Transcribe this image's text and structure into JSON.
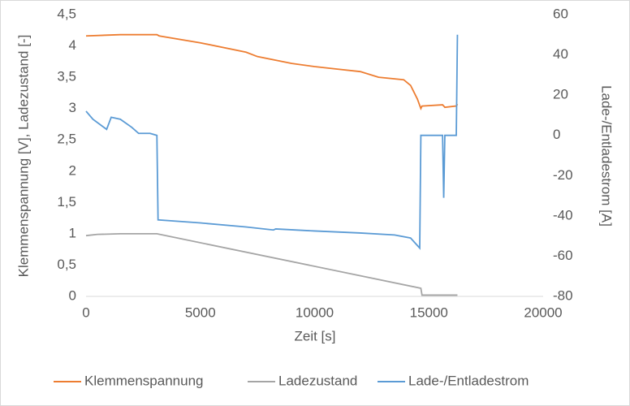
{
  "chart_data": {
    "type": "line",
    "x_label": "Zeit [s]",
    "y_label": "Klemmenspannung [V], Ladezustand [-]",
    "y2_label": "Lade-/Entladestrom [A]",
    "xlim": [
      0,
      20000
    ],
    "xticks": [
      0,
      5000,
      10000,
      15000,
      20000
    ],
    "ylim": [
      0,
      4.5
    ],
    "yticks": [
      0,
      {
        "value": 0.5,
        "label": "0,5"
      },
      1,
      {
        "value": 1.5,
        "label": "1,5"
      },
      2,
      {
        "value": 2.5,
        "label": "2,5"
      },
      3,
      {
        "value": 3.5,
        "label": "3,5"
      },
      4,
      {
        "value": 4.5,
        "label": "4,5"
      }
    ],
    "y2lim": [
      -80,
      60
    ],
    "y2ticks": [
      -80,
      -60,
      -40,
      -20,
      0,
      20,
      40,
      60
    ],
    "grid": false,
    "legend": "bottom",
    "series": [
      {
        "name": "Klemmenspannung",
        "color": "#ed7d31",
        "x": [
          0,
          1500,
          3100,
          3200,
          5000,
          7000,
          7500,
          9000,
          10000,
          11000,
          12000,
          12800,
          13900,
          14200,
          14500,
          14650,
          14700,
          15600,
          15700,
          16200,
          16250
        ],
        "values": [
          4.16,
          4.18,
          4.18,
          4.16,
          4.05,
          3.9,
          3.83,
          3.72,
          3.67,
          3.63,
          3.59,
          3.5,
          3.46,
          3.37,
          3.15,
          3.0,
          3.04,
          3.06,
          3.02,
          3.04,
          3.07
        ]
      },
      {
        "name": "Ladezustand",
        "color": "#a5a5a5",
        "x": [
          0,
          500,
          1500,
          3100,
          14650,
          14700,
          16250
        ],
        "values": [
          0.97,
          0.99,
          1.0,
          1.0,
          0.13,
          0.02,
          0.02
        ]
      },
      {
        "name": "Lade-/Entladestrom",
        "color": "#5b9bd5",
        "axis": "y2",
        "x": [
          0,
          300,
          900,
          1100,
          1500,
          2000,
          2300,
          2800,
          3100,
          3150,
          5000,
          7000,
          8200,
          8300,
          10000,
          12000,
          13500,
          14200,
          14600,
          14650,
          15600,
          15650,
          15700,
          16200,
          16250
        ],
        "values": [
          12,
          8,
          3,
          9,
          8,
          4,
          1,
          1,
          0,
          -42,
          -43.5,
          -45.5,
          -47,
          -46.5,
          -47.5,
          -48.5,
          -49.5,
          -51,
          -56,
          0,
          0,
          -31,
          0,
          0,
          50
        ]
      }
    ]
  }
}
